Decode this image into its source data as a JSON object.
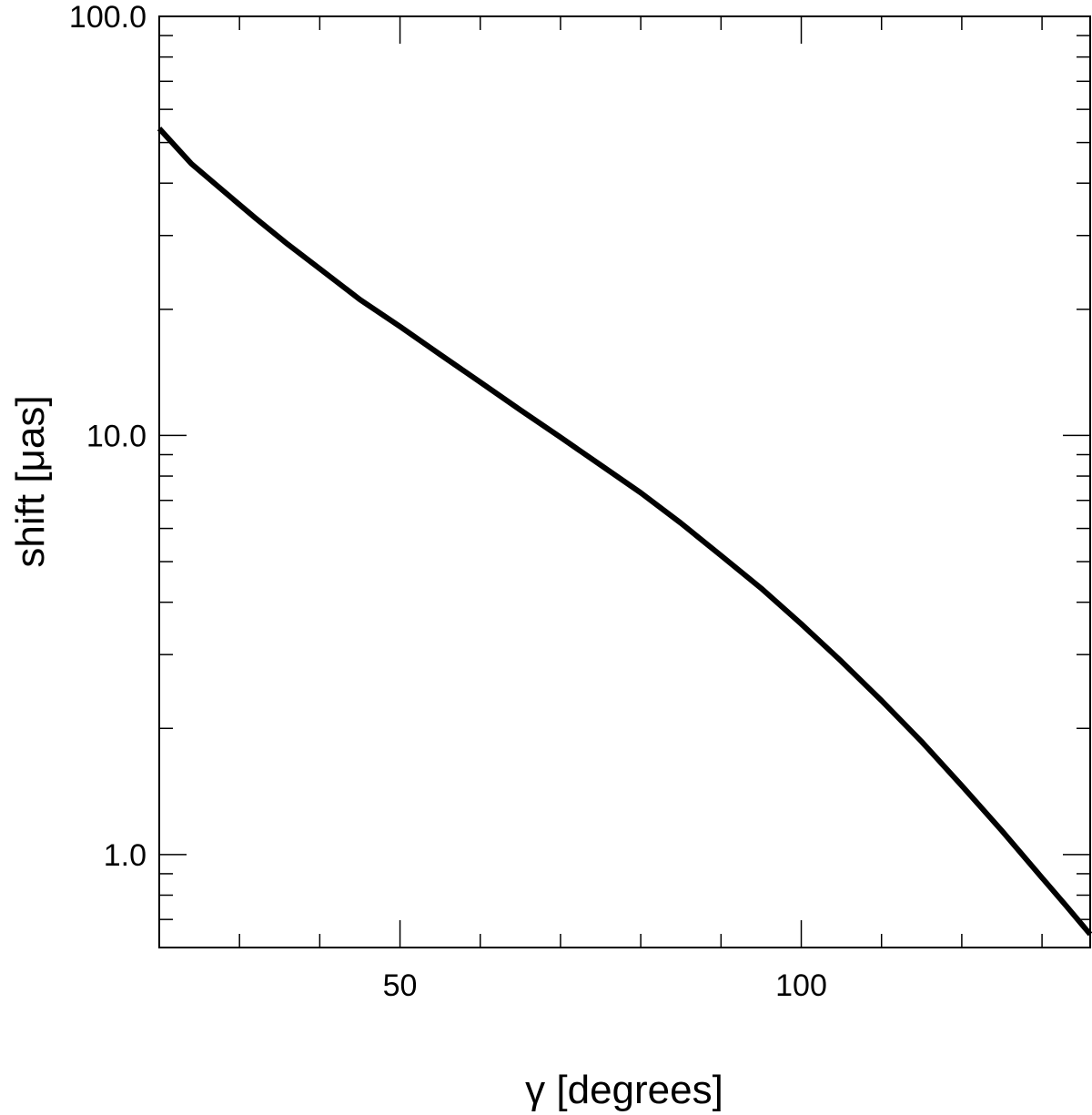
{
  "chart_data": {
    "type": "line",
    "title": "",
    "xlabel": "γ [degrees]",
    "ylabel": "shift [μas]",
    "x_scale": "linear",
    "y_scale": "log",
    "xlim": [
      20,
      136
    ],
    "ylim": [
      0.6,
      100
    ],
    "x_ticks": [
      {
        "value": 50,
        "label": "50"
      },
      {
        "value": 100,
        "label": "100"
      }
    ],
    "y_ticks": [
      {
        "value": 1,
        "label": "1.0"
      },
      {
        "value": 10,
        "label": "10.0"
      },
      {
        "value": 100,
        "label": "100.0"
      }
    ],
    "grid": false,
    "series": [
      {
        "color": "#000000",
        "x": [
          20,
          24,
          28,
          32,
          36,
          40,
          45,
          50,
          55,
          60,
          65,
          70,
          75,
          80,
          85,
          90,
          95,
          100,
          105,
          110,
          115,
          120,
          125,
          130,
          133,
          136
        ],
        "y": [
          54,
          44.5,
          38.3,
          33,
          28.6,
          25,
          21.1,
          18.2,
          15.6,
          13.4,
          11.5,
          9.9,
          8.5,
          7.3,
          6.18,
          5.17,
          4.32,
          3.55,
          2.89,
          2.33,
          1.86,
          1.46,
          1.14,
          0.88,
          0.755,
          0.645
        ]
      }
    ]
  }
}
